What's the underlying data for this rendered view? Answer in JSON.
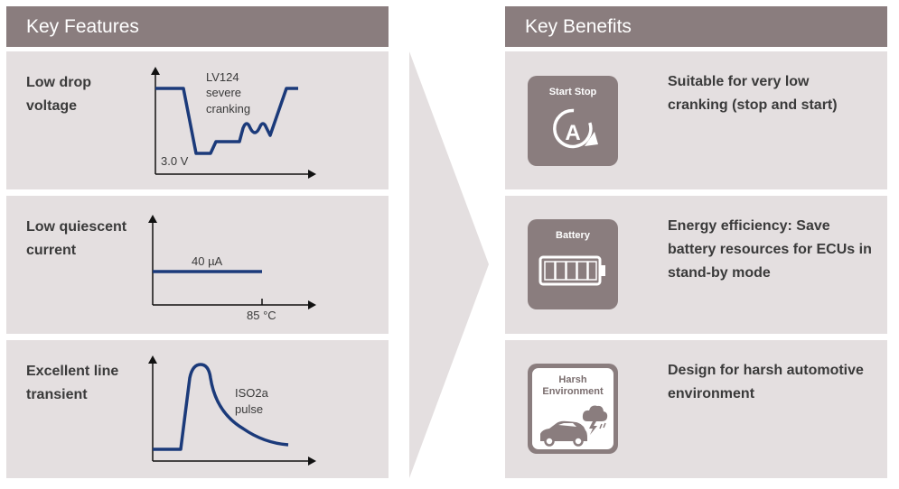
{
  "features": {
    "header": "Key Features",
    "items": [
      {
        "title_line1": "Low drop",
        "title_line2": "voltage",
        "annotation_line1": "LV124",
        "annotation_line2": "severe",
        "annotation_line3": "cranking",
        "axis_label": "3.0 V"
      },
      {
        "title_line1": "Low quiescent",
        "title_line2": "current",
        "level_label": "40 µA",
        "x_label": "85 °C"
      },
      {
        "title_line1": "Excellent line",
        "title_line2": "transient",
        "annotation_line1": "ISO2a",
        "annotation_line2": "pulse"
      }
    ]
  },
  "benefits": {
    "header": "Key Benefits",
    "items": [
      {
        "icon": "start-stop-icon",
        "icon_label": "Start Stop",
        "icon_glyph": "A",
        "line1": "Suitable for very low",
        "line2": "cranking (stop and start)"
      },
      {
        "icon": "battery-icon",
        "icon_label": "Battery",
        "line1": "Energy efficiency: Save",
        "line2": "battery resources for ECUs in",
        "line3": "stand-by mode"
      },
      {
        "icon": "harsh-environment-icon",
        "icon_label_line1": "Harsh",
        "icon_label_line2": "Environment",
        "line1": "Design for harsh automotive",
        "line2": "environment"
      }
    ]
  },
  "colors": {
    "header": "#8a7d7e",
    "panel": "#e4dfe0",
    "curve": "#1b3a7a",
    "arrow": "#e4dfe0"
  }
}
